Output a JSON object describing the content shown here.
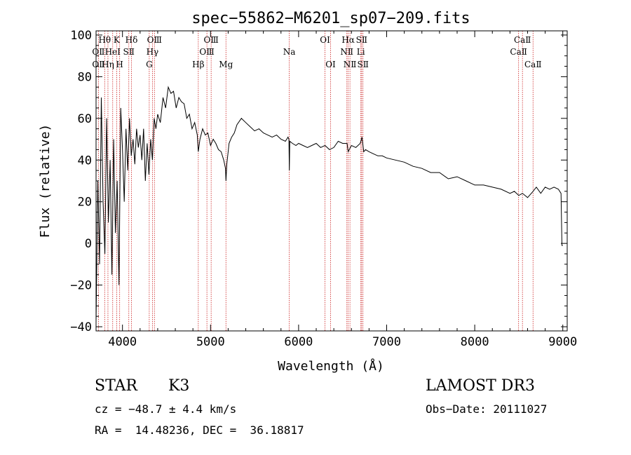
{
  "chart_data": {
    "type": "line",
    "title": "spec−55862−M6201_sp07−209.fits",
    "xlabel": "Wavelength (Å)",
    "ylabel": "Flux (relative)",
    "xlim": [
      3700,
      9050
    ],
    "ylim": [
      -42,
      102
    ],
    "xticks": [
      4000,
      5000,
      6000,
      7000,
      8000,
      9000
    ],
    "yticks": [
      -40,
      -20,
      0,
      20,
      40,
      60,
      80,
      100
    ],
    "ytick_labels": [
      "−40",
      "−20",
      "0",
      "20",
      "40",
      "60",
      "80",
      "100"
    ],
    "spectral_lines": [
      {
        "label": "OⅡ",
        "wavelength": 3727,
        "row": 2
      },
      {
        "label": "OⅡ",
        "wavelength": 3727,
        "row": 3
      },
      {
        "label": "Hθ",
        "wavelength": 3798,
        "row": 1
      },
      {
        "label": "Hη",
        "wavelength": 3835,
        "row": 3
      },
      {
        "label": "HeI",
        "wavelength": 3889,
        "row": 2
      },
      {
        "label": "K",
        "wavelength": 3934,
        "row": 1
      },
      {
        "label": "H",
        "wavelength": 3968,
        "row": 3
      },
      {
        "label": "SⅡ",
        "wavelength": 4072,
        "row": 2
      },
      {
        "label": "Hδ",
        "wavelength": 4102,
        "row": 1
      },
      {
        "label": "G",
        "wavelength": 4304,
        "row": 3
      },
      {
        "label": "Hγ",
        "wavelength": 4340,
        "row": 2
      },
      {
        "label": "OⅢ",
        "wavelength": 4363,
        "row": 1
      },
      {
        "label": "Hβ",
        "wavelength": 4861,
        "row": 3
      },
      {
        "label": "OⅢ",
        "wavelength": 4959,
        "row": 2
      },
      {
        "label": "OⅢ",
        "wavelength": 5007,
        "row": 1
      },
      {
        "label": "Mg",
        "wavelength": 5175,
        "row": 3
      },
      {
        "label": "Na",
        "wavelength": 5894,
        "row": 2
      },
      {
        "label": "OI",
        "wavelength": 6300,
        "row": 1
      },
      {
        "label": "OI",
        "wavelength": 6363,
        "row": 3
      },
      {
        "label": "NⅡ",
        "wavelength": 6548,
        "row": 2
      },
      {
        "label": "Hα",
        "wavelength": 6563,
        "row": 1
      },
      {
        "label": "NⅡ",
        "wavelength": 6583,
        "row": 3
      },
      {
        "label": "Li",
        "wavelength": 6707,
        "row": 2
      },
      {
        "label": "SⅡ",
        "wavelength": 6716,
        "row": 1
      },
      {
        "label": "SⅡ",
        "wavelength": 6731,
        "row": 3
      },
      {
        "label": "CaⅡ",
        "wavelength": 8498,
        "row": 2
      },
      {
        "label": "CaⅡ",
        "wavelength": 8542,
        "row": 1
      },
      {
        "label": "CaⅡ",
        "wavelength": 8662,
        "row": 3
      }
    ],
    "series": [
      {
        "name": "flux",
        "x": [
          3700,
          3720,
          3740,
          3760,
          3780,
          3800,
          3820,
          3840,
          3860,
          3880,
          3900,
          3920,
          3940,
          3960,
          3980,
          4000,
          4020,
          4040,
          4060,
          4080,
          4100,
          4120,
          4140,
          4160,
          4180,
          4200,
          4220,
          4240,
          4260,
          4280,
          4300,
          4320,
          4340,
          4360,
          4380,
          4400,
          4430,
          4460,
          4490,
          4520,
          4550,
          4580,
          4610,
          4640,
          4670,
          4700,
          4730,
          4760,
          4790,
          4820,
          4850,
          4861,
          4880,
          4910,
          4940,
          4970,
          5000,
          5030,
          5060,
          5090,
          5120,
          5150,
          5170,
          5175,
          5185,
          5210,
          5240,
          5270,
          5300,
          5350,
          5400,
          5450,
          5500,
          5550,
          5600,
          5650,
          5700,
          5750,
          5800,
          5850,
          5880,
          5890,
          5895,
          5900,
          5930,
          5970,
          6000,
          6050,
          6100,
          6150,
          6200,
          6250,
          6300,
          6350,
          6400,
          6450,
          6500,
          6550,
          6563,
          6600,
          6650,
          6700,
          6720,
          6740,
          6760,
          6800,
          6850,
          6900,
          6950,
          7000,
          7100,
          7200,
          7300,
          7400,
          7500,
          7600,
          7700,
          7800,
          7900,
          8000,
          8100,
          8200,
          8300,
          8400,
          8450,
          8500,
          8542,
          8600,
          8662,
          8700,
          8750,
          8800,
          8850,
          8900,
          8950,
          8980,
          8990,
          9000
        ],
        "y": [
          -38,
          30,
          -10,
          70,
          20,
          -5,
          60,
          10,
          40,
          -15,
          50,
          5,
          30,
          -20,
          65,
          45,
          20,
          55,
          35,
          60,
          42,
          50,
          38,
          55,
          46,
          52,
          40,
          55,
          30,
          48,
          33,
          50,
          40,
          60,
          55,
          62,
          58,
          70,
          65,
          75,
          72,
          73,
          65,
          70,
          68,
          67,
          60,
          62,
          55,
          58,
          52,
          44,
          50,
          55,
          52,
          53,
          47,
          50,
          48,
          45,
          44,
          40,
          36,
          30,
          38,
          48,
          51,
          53,
          57,
          60,
          58,
          56,
          54,
          55,
          53,
          52,
          51,
          52,
          50,
          49,
          51,
          50,
          35,
          49,
          48,
          47,
          48,
          47,
          46,
          47,
          48,
          46,
          47,
          45,
          46,
          49,
          48,
          48,
          44,
          47,
          46,
          48,
          51,
          44,
          45,
          44,
          43,
          42,
          42,
          41,
          40,
          39,
          37,
          36,
          34,
          34,
          31,
          32,
          30,
          28,
          28,
          27,
          26,
          24,
          25,
          23,
          24,
          22,
          25,
          27,
          24,
          27,
          26,
          27,
          26,
          24,
          -1,
          -1
        ]
      }
    ]
  },
  "info": {
    "object_class": "STAR",
    "subclass": "K3",
    "survey": "LAMOST DR3",
    "velocity": "cz = −48.7 ± 4.4 km/s",
    "obs_date": "Obs−Date: 20111027",
    "coords": "RA =  14.48236, DEC =  36.18817"
  },
  "colors": {
    "axes": "#000000",
    "spectrum": "#000000",
    "line_marker": "#cc2222"
  }
}
